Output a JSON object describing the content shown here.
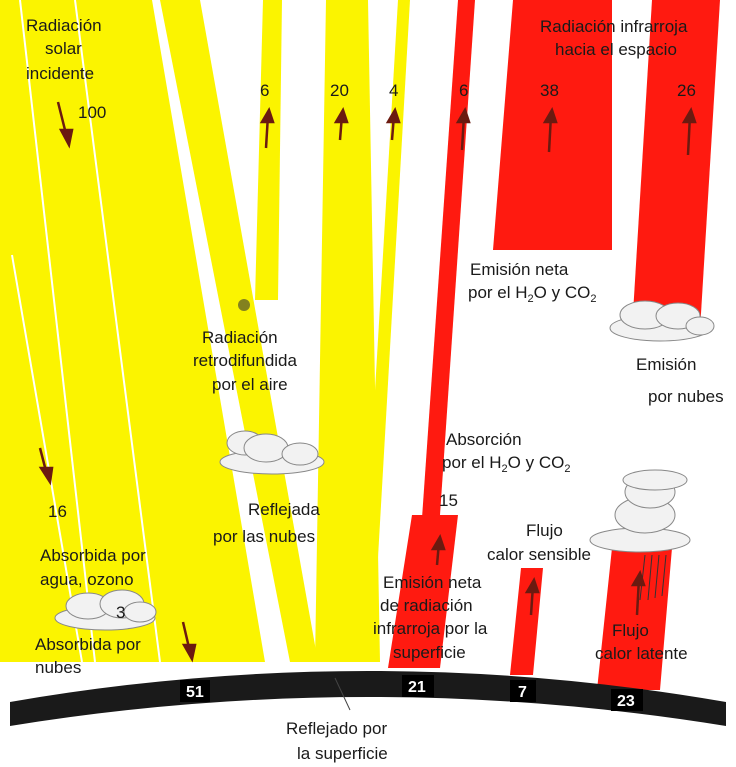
{
  "colors": {
    "solar": "#fbf400",
    "infrared": "#ff1a10",
    "ground": "#1a1a1a",
    "cloud": "#f2f2f2",
    "text": "#1a1a1a",
    "arrow_dark": "#6b1a10"
  },
  "labels": {
    "incoming_line1": "Radiación",
    "incoming_line2": "solar",
    "incoming_line3": "incidente",
    "ir_space_line1": "Radiación infrarroja",
    "ir_space_line2": "hacia el espacio",
    "net_emission_line1": "Emisión neta",
    "net_emission_line2": "por el H",
    "net_emission_line2_sub": "2",
    "net_emission_line2_b": "O  y  CO",
    "net_emission_line2_sub2": "2",
    "cloud_emission_line1": "Emisión",
    "cloud_emission_line2": "por nubes",
    "backscatter_line1": "Radiación",
    "backscatter_line2": "retrodifundida",
    "backscatter_line3": "por el aire",
    "absorption_line1": "Absorción",
    "absorption_line2": "por el H",
    "absorption_line2_sub": "2",
    "absorption_line2_b": "O  y  CO",
    "absorption_line2_sub2": "2",
    "cloud_reflected_line1": "Reflejada",
    "cloud_reflected_line2": "por las nubes",
    "water_ozone_line1": "Absorbida por",
    "water_ozone_line2": "agua, ozono",
    "clouds_absorbed_line1": "Absorbida por",
    "clouds_absorbed_line2": "nubes",
    "sensible_line1": "Flujo",
    "sensible_line2": "calor sensible",
    "surface_ir_line1": "Emisión neta",
    "surface_ir_line2": "de radiación",
    "surface_ir_line3": "infrarroja por la",
    "surface_ir_line4": "superficie",
    "latent_line1": "Flujo",
    "latent_line2": "calor latente",
    "surface_reflected_line1": "Reflejado por",
    "surface_reflected_line2": "la superficie"
  },
  "values": {
    "incoming": "100",
    "backscatter_out": "6",
    "cloud_reflect_out": "20",
    "surface_reflect_out": "4",
    "ir_window_out": "6",
    "gas_emission_out": "38",
    "cloud_emission_out": "26",
    "absorbed_water_ozone": "16",
    "absorbed_clouds": "3",
    "surface_absorbed": "51",
    "surface_ir": "21",
    "sensible": "7",
    "latent": "23",
    "ir_absorbed_atm": "15"
  }
}
